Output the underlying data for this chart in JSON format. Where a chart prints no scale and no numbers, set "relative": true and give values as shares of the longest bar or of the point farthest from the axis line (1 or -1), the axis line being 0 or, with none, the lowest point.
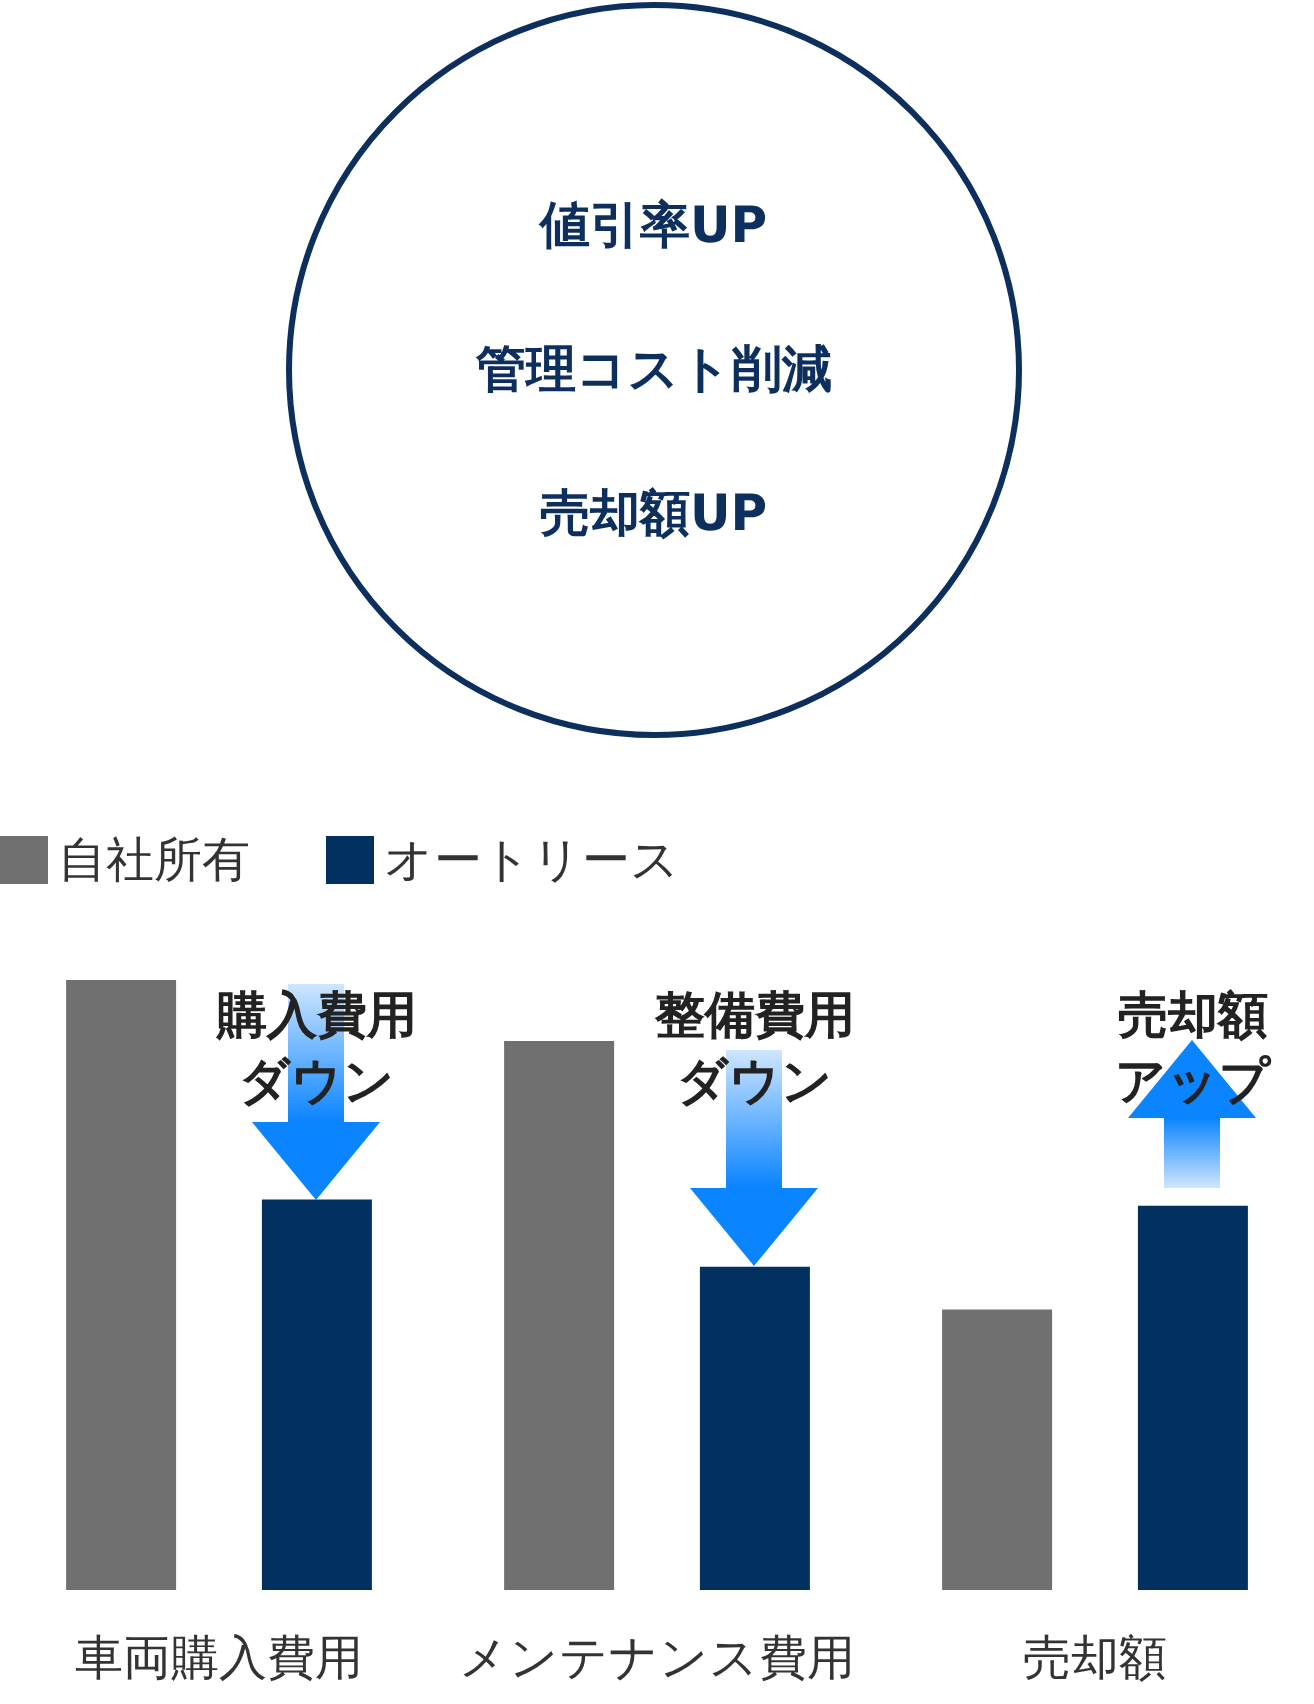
{
  "chart_data": {
    "type": "bar",
    "relative": true,
    "categories": [
      "車両購入費用",
      "メンテナンス費用",
      "売却額"
    ],
    "series": [
      {
        "name": "自社所有",
        "color": "#707070",
        "values": [
          1,
          0.9,
          0.46
        ]
      },
      {
        "name": "オートリース",
        "color": "#02305f",
        "values": [
          0.64,
          0.53,
          0.63
        ]
      }
    ],
    "legend": "top left",
    "annotations": [
      "値引率UP",
      "管理コスト削減",
      "売却額UP",
      "購入費用ダウン",
      "整備費用ダウン",
      "売却額アップ"
    ]
  }
}
